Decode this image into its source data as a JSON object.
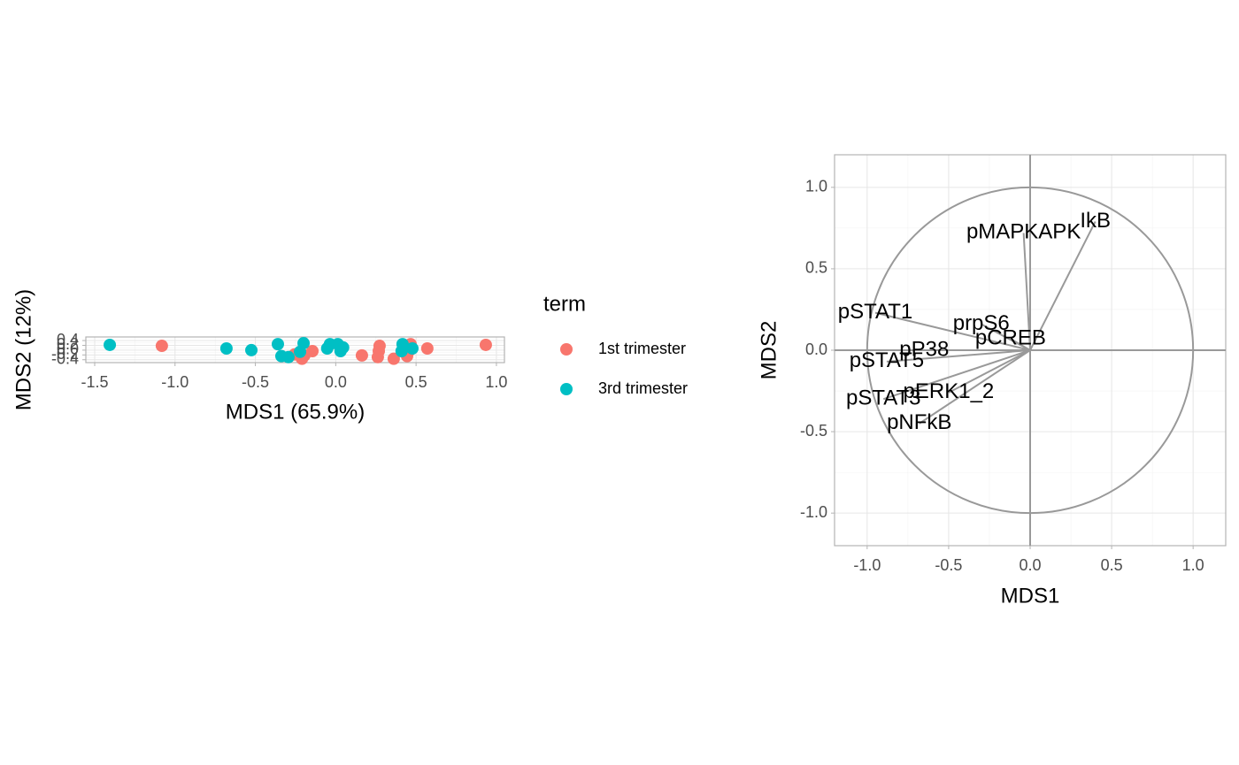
{
  "chart_data": [
    {
      "type": "scatter",
      "xlabel": "MDS1 (65.9%)",
      "ylabel": "MDS2 (12%)",
      "legend_title": "term",
      "xlim": [
        -1.555,
        1.05
      ],
      "ylim": [
        -0.52,
        0.55
      ],
      "xticks": [
        -1.5,
        {
          "value": -1.0,
          "label": "-1.0"
        },
        -0.5,
        {
          "value": 0,
          "label": "0.0"
        },
        0.5,
        {
          "value": 1.0,
          "label": "1.0"
        }
      ],
      "yticks": [
        -0.4,
        -0.2,
        {
          "value": 0,
          "label": "0.0"
        },
        0.2,
        0.4
      ],
      "grid": true,
      "series": [
        {
          "name": "1st trimester",
          "color": "#F8766D",
          "x": [
            -1.082,
            0.934,
            0.57,
            0.273,
            0.268,
            0.262,
            0.466,
            0.455,
            0.444,
            0.361,
            0.163,
            -0.145,
            -0.195,
            -0.256,
            -0.21
          ],
          "y": [
            0.18,
            0.22,
            0.07,
            0.18,
            -0.04,
            -0.29,
            0.25,
            -0.04,
            -0.25,
            -0.36,
            -0.22,
            -0.04,
            -0.22,
            -0.18,
            -0.36
          ]
        },
        {
          "name": "3rd trimester",
          "color": "#00BFC4",
          "x": [
            -1.406,
            -0.68,
            -0.525,
            -0.36,
            -0.2,
            -0.338,
            -0.294,
            -0.222,
            -0.053,
            -0.036,
            0.013,
            0.046,
            0.03,
            0.416,
            0.41,
            0.477
          ],
          "y": [
            0.22,
            0.07,
            0.0,
            0.25,
            0.29,
            -0.25,
            -0.29,
            -0.07,
            0.07,
            0.25,
            0.25,
            0.11,
            -0.04,
            0.25,
            -0.04,
            0.07
          ]
        }
      ]
    },
    {
      "type": "vector",
      "xlabel": "MDS1",
      "ylabel": "MDS2",
      "xlim": [
        -1.2,
        1.2
      ],
      "ylim": [
        -1.2,
        1.2
      ],
      "xticks": [
        {
          "value": -1.0,
          "label": "-1.0"
        },
        -0.5,
        {
          "value": 0,
          "label": "0.0"
        },
        0.5,
        {
          "value": 1.0,
          "label": "1.0"
        }
      ],
      "yticks": [
        {
          "value": -1.0,
          "label": "-1.0"
        },
        -0.5,
        {
          "value": 0,
          "label": "0.0"
        },
        0.5,
        {
          "value": 1.0,
          "label": "1.0"
        }
      ],
      "grid": true,
      "circle": true,
      "color": "#999999",
      "names": [
        "IkB",
        "pMAPKAPK",
        "pSTAT1",
        "prpS6",
        "pCREB",
        "pP38",
        "pSTAT5",
        "pERK1_2",
        "pSTAT3",
        "pNFkB"
      ],
      "x": [
        0.4,
        -0.04,
        -0.95,
        -0.3,
        -0.12,
        -0.65,
        -0.88,
        -0.5,
        -0.9,
        -0.68
      ],
      "y": [
        0.79,
        0.72,
        0.23,
        0.16,
        0.07,
        0.0,
        -0.07,
        -0.26,
        -0.3,
        -0.45
      ]
    }
  ]
}
